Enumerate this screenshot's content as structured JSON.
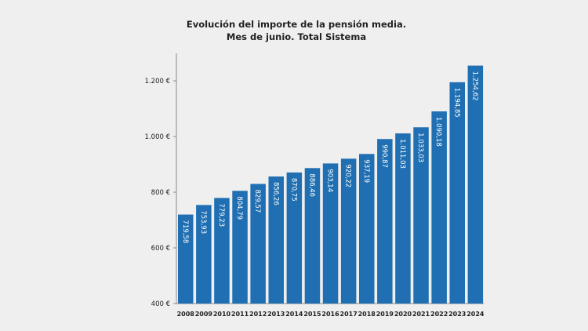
{
  "chart_data": {
    "type": "bar",
    "title": [
      "Evolución del importe de la pensión media.",
      "Mes de junio. Total Sistema"
    ],
    "xlabel": "",
    "ylabel": "",
    "categories": [
      "2008",
      "2009",
      "2010",
      "2011",
      "2012",
      "2013",
      "2014",
      "2015",
      "2016",
      "2017",
      "2018",
      "2019",
      "2020",
      "2021",
      "2022",
      "2023",
      "2024"
    ],
    "values": [
      719.58,
      753.93,
      779.23,
      804.79,
      829.57,
      856.26,
      870.75,
      886.46,
      903.14,
      920.22,
      937.19,
      990.87,
      1011.03,
      1033.03,
      1090.18,
      1194.85,
      1254.62
    ],
    "data_labels": [
      "719,58",
      "753,93",
      "779,23",
      "804,79",
      "829,57",
      "856,26",
      "870,75",
      "886,46",
      "903,14",
      "920,22",
      "937,19",
      "990,87",
      "1.011,03",
      "1.033,03",
      "1.090,18",
      "1.194,85",
      "1.254,62"
    ],
    "ylim": [
      400,
      1300
    ],
    "yticks": [
      400,
      600,
      800,
      1000,
      1200
    ],
    "ytick_labels": [
      "400 €",
      "600 €",
      "800 €",
      "1.000 €",
      "1.200 €"
    ],
    "grid": false,
    "legend": "none",
    "bar_color": "#1f6fb2"
  }
}
